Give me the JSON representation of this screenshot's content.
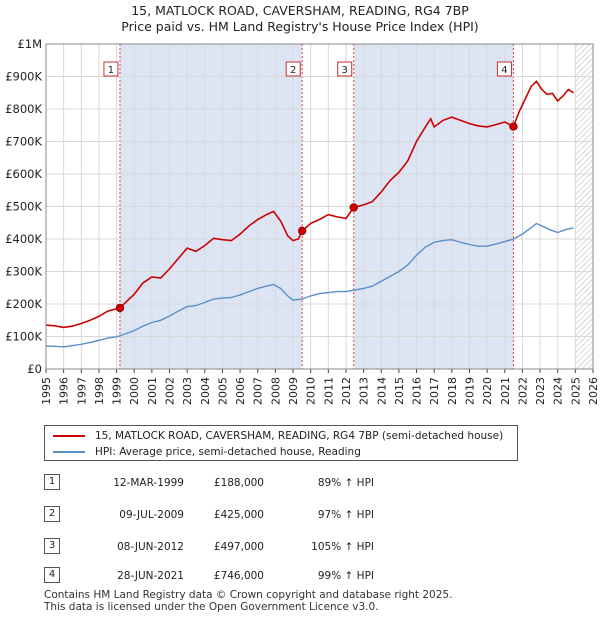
{
  "title_line1": "15, MATLOCK ROAD, CAVERSHAM, READING, RG4 7BP",
  "title_line2": "Price paid vs. HM Land Registry's House Price Index (HPI)",
  "chart_data": {
    "type": "line",
    "x_ticks": [
      "1995",
      "1996",
      "1997",
      "1998",
      "1999",
      "2000",
      "2001",
      "2002",
      "2003",
      "2004",
      "2005",
      "2006",
      "2007",
      "2008",
      "2009",
      "2010",
      "2011",
      "2012",
      "2013",
      "2014",
      "2015",
      "2016",
      "2017",
      "2018",
      "2019",
      "2020",
      "2021",
      "2022",
      "2023",
      "2024",
      "2025",
      "2026"
    ],
    "y_ticks": [
      {
        "value": 0,
        "label": "£0"
      },
      {
        "value": 100000,
        "label": "£100K"
      },
      {
        "value": 200000,
        "label": "£200K"
      },
      {
        "value": 300000,
        "label": "£300K"
      },
      {
        "value": 400000,
        "label": "£400K"
      },
      {
        "value": 500000,
        "label": "£500K"
      },
      {
        "value": 600000,
        "label": "£600K"
      },
      {
        "value": 700000,
        "label": "£700K"
      },
      {
        "value": 800000,
        "label": "£800K"
      },
      {
        "value": 900000,
        "label": "£900K"
      },
      {
        "value": 1000000,
        "label": "£1M"
      }
    ],
    "xlim": [
      1995,
      2026
    ],
    "ylim": [
      0,
      1000000
    ],
    "shaded_ranges": [
      [
        1999.19,
        2009.52
      ],
      [
        2012.44,
        2021.49
      ]
    ],
    "future_hatch_from": 2025.0,
    "colors": {
      "property": "#cc0000",
      "hpi": "#5b8fc9",
      "shade": "#dde5f5",
      "vline": "#dd4444"
    },
    "series": [
      {
        "name": "15, MATLOCK ROAD, CAVERSHAM, READING, RG4 7BP (semi-detached house)",
        "color": "#cc0000",
        "points": [
          [
            1995.0,
            135000
          ],
          [
            1995.5,
            133000
          ],
          [
            1996.0,
            128000
          ],
          [
            1996.5,
            132000
          ],
          [
            1997.0,
            140000
          ],
          [
            1997.5,
            150000
          ],
          [
            1998.0,
            162000
          ],
          [
            1998.5,
            178000
          ],
          [
            1999.19,
            188000
          ],
          [
            1999.6,
            210000
          ],
          [
            2000.0,
            230000
          ],
          [
            2000.5,
            265000
          ],
          [
            2001.0,
            283000
          ],
          [
            2001.5,
            280000
          ],
          [
            2002.0,
            308000
          ],
          [
            2002.5,
            340000
          ],
          [
            2003.0,
            372000
          ],
          [
            2003.5,
            362000
          ],
          [
            2004.0,
            380000
          ],
          [
            2004.5,
            402000
          ],
          [
            2005.0,
            398000
          ],
          [
            2005.5,
            395000
          ],
          [
            2006.0,
            415000
          ],
          [
            2006.5,
            440000
          ],
          [
            2007.0,
            460000
          ],
          [
            2007.5,
            475000
          ],
          [
            2007.9,
            485000
          ],
          [
            2008.3,
            455000
          ],
          [
            2008.7,
            410000
          ],
          [
            2009.0,
            395000
          ],
          [
            2009.3,
            400000
          ],
          [
            2009.52,
            425000
          ],
          [
            2010.0,
            448000
          ],
          [
            2010.5,
            460000
          ],
          [
            2011.0,
            475000
          ],
          [
            2011.5,
            468000
          ],
          [
            2012.0,
            463000
          ],
          [
            2012.44,
            497000
          ],
          [
            2013.0,
            505000
          ],
          [
            2013.5,
            515000
          ],
          [
            2014.0,
            545000
          ],
          [
            2014.5,
            580000
          ],
          [
            2015.0,
            605000
          ],
          [
            2015.5,
            640000
          ],
          [
            2016.0,
            700000
          ],
          [
            2016.5,
            745000
          ],
          [
            2016.8,
            770000
          ],
          [
            2017.0,
            745000
          ],
          [
            2017.5,
            765000
          ],
          [
            2018.0,
            775000
          ],
          [
            2018.5,
            765000
          ],
          [
            2019.0,
            755000
          ],
          [
            2019.5,
            748000
          ],
          [
            2020.0,
            745000
          ],
          [
            2020.5,
            752000
          ],
          [
            2021.0,
            760000
          ],
          [
            2021.49,
            746000
          ],
          [
            2021.8,
            790000
          ],
          [
            2022.2,
            835000
          ],
          [
            2022.5,
            870000
          ],
          [
            2022.8,
            885000
          ],
          [
            2023.1,
            860000
          ],
          [
            2023.4,
            845000
          ],
          [
            2023.7,
            848000
          ],
          [
            2024.0,
            825000
          ],
          [
            2024.3,
            840000
          ],
          [
            2024.6,
            860000
          ],
          [
            2024.9,
            850000
          ]
        ]
      },
      {
        "name": "HPI: Average price, semi-detached house, Reading",
        "color": "#5b8fc9",
        "points": [
          [
            1995.0,
            71000
          ],
          [
            1995.5,
            70000
          ],
          [
            1996.0,
            68000
          ],
          [
            1996.5,
            72000
          ],
          [
            1997.0,
            76000
          ],
          [
            1997.5,
            82000
          ],
          [
            1998.0,
            88000
          ],
          [
            1998.5,
            95000
          ],
          [
            1999.0,
            99000
          ],
          [
            1999.5,
            108000
          ],
          [
            2000.0,
            118000
          ],
          [
            2000.5,
            132000
          ],
          [
            2001.0,
            143000
          ],
          [
            2001.5,
            150000
          ],
          [
            2002.0,
            163000
          ],
          [
            2002.5,
            178000
          ],
          [
            2003.0,
            192000
          ],
          [
            2003.5,
            195000
          ],
          [
            2004.0,
            205000
          ],
          [
            2004.5,
            215000
          ],
          [
            2005.0,
            218000
          ],
          [
            2005.5,
            220000
          ],
          [
            2006.0,
            228000
          ],
          [
            2006.5,
            238000
          ],
          [
            2007.0,
            248000
          ],
          [
            2007.5,
            255000
          ],
          [
            2007.9,
            260000
          ],
          [
            2008.3,
            248000
          ],
          [
            2008.7,
            225000
          ],
          [
            2009.0,
            212000
          ],
          [
            2009.5,
            215000
          ],
          [
            2010.0,
            225000
          ],
          [
            2010.5,
            232000
          ],
          [
            2011.0,
            235000
          ],
          [
            2011.5,
            238000
          ],
          [
            2012.0,
            238000
          ],
          [
            2012.5,
            243000
          ],
          [
            2013.0,
            248000
          ],
          [
            2013.5,
            255000
          ],
          [
            2014.0,
            270000
          ],
          [
            2014.5,
            285000
          ],
          [
            2015.0,
            300000
          ],
          [
            2015.5,
            320000
          ],
          [
            2016.0,
            350000
          ],
          [
            2016.5,
            375000
          ],
          [
            2017.0,
            390000
          ],
          [
            2017.5,
            395000
          ],
          [
            2018.0,
            398000
          ],
          [
            2018.5,
            390000
          ],
          [
            2019.0,
            383000
          ],
          [
            2019.5,
            378000
          ],
          [
            2020.0,
            378000
          ],
          [
            2020.5,
            385000
          ],
          [
            2021.0,
            392000
          ],
          [
            2021.5,
            400000
          ],
          [
            2022.0,
            415000
          ],
          [
            2022.5,
            435000
          ],
          [
            2022.8,
            448000
          ],
          [
            2023.1,
            440000
          ],
          [
            2023.5,
            430000
          ],
          [
            2024.0,
            420000
          ],
          [
            2024.5,
            430000
          ],
          [
            2024.9,
            434000
          ]
        ]
      }
    ],
    "sales": [
      {
        "num": "1",
        "x": 1999.19,
        "y": 188000
      },
      {
        "num": "2",
        "x": 2009.52,
        "y": 425000
      },
      {
        "num": "3",
        "x": 2012.44,
        "y": 497000
      },
      {
        "num": "4",
        "x": 2021.49,
        "y": 746000
      }
    ]
  },
  "legend": {
    "property_label": "15, MATLOCK ROAD, CAVERSHAM, READING, RG4 7BP (semi-detached house)",
    "hpi_label": "HPI: Average price, semi-detached house, Reading"
  },
  "transactions": [
    {
      "num": "1",
      "date": "12-MAR-1999",
      "price": "£188,000",
      "hpi": "89% ↑ HPI"
    },
    {
      "num": "2",
      "date": "09-JUL-2009",
      "price": "£425,000",
      "hpi": "97% ↑ HPI"
    },
    {
      "num": "3",
      "date": "08-JUN-2012",
      "price": "£497,000",
      "hpi": "105% ↑ HPI"
    },
    {
      "num": "4",
      "date": "28-JUN-2021",
      "price": "£746,000",
      "hpi": "99% ↑ HPI"
    }
  ],
  "footer": {
    "line1": "Contains HM Land Registry data © Crown copyright and database right 2025.",
    "line2": "This data is licensed under the Open Government Licence v3.0."
  }
}
